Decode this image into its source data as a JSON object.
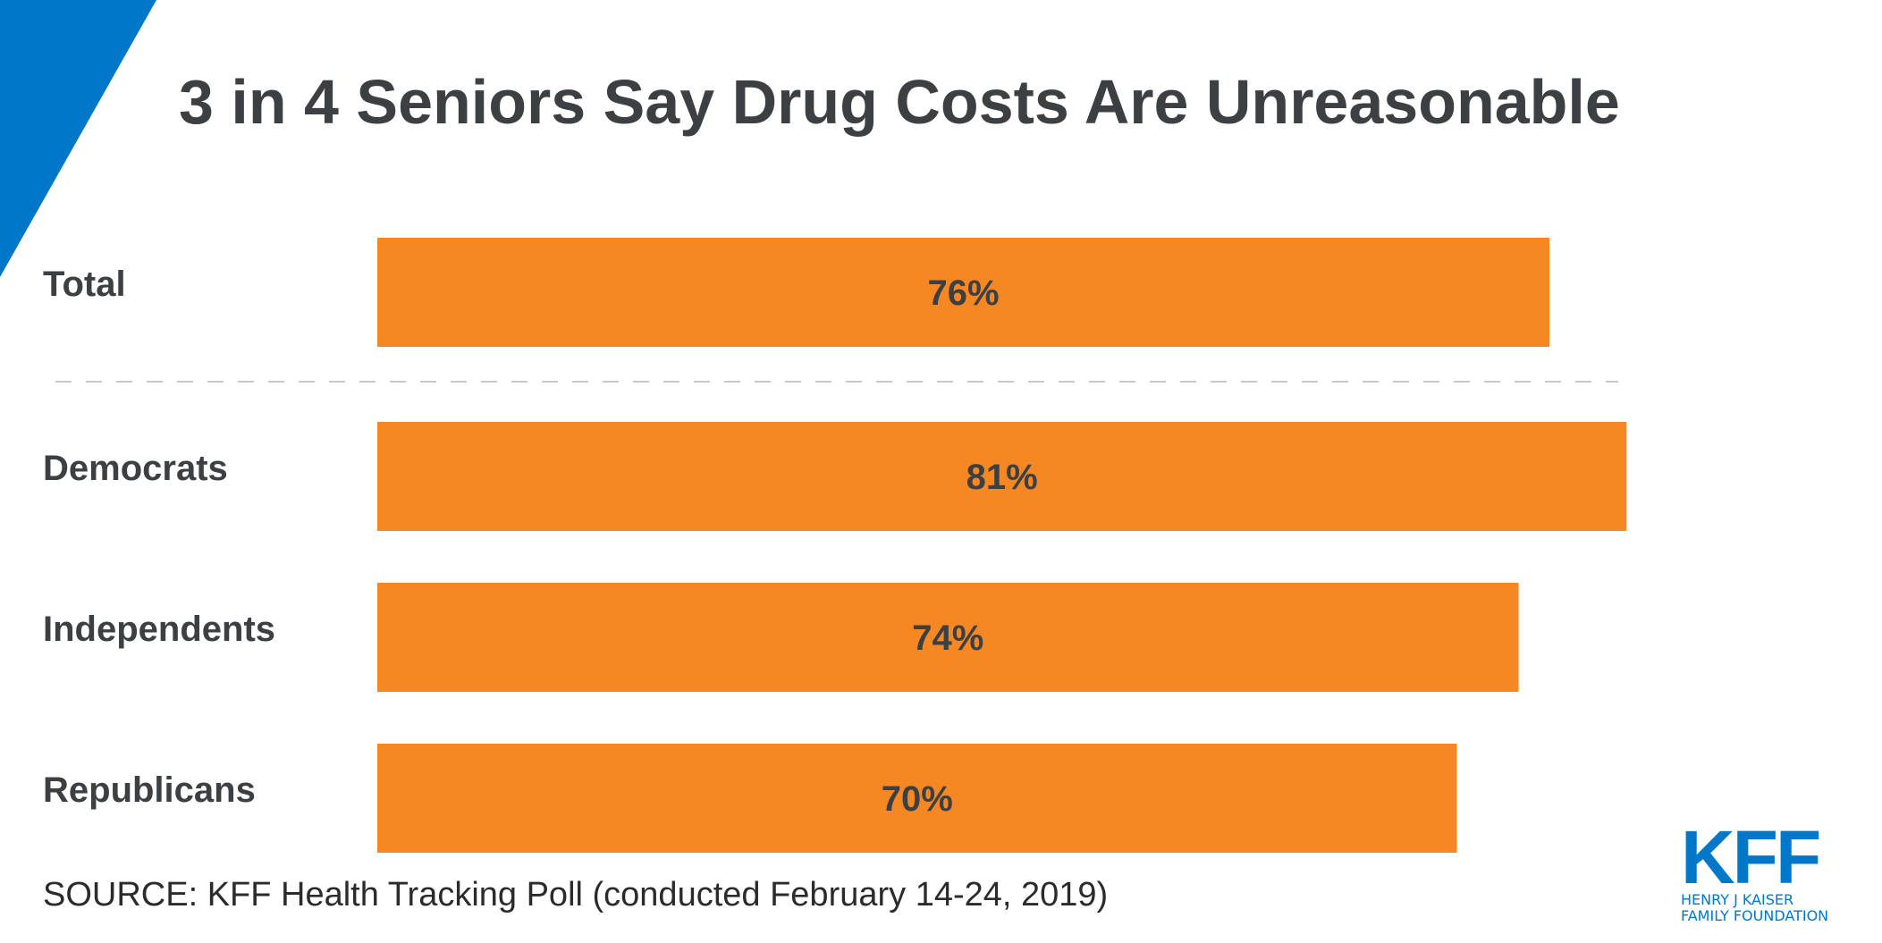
{
  "colors": {
    "bar": "#f58823",
    "text": "#3d4043",
    "brand_blue": "#0077c8",
    "divider": "#c8c8c8"
  },
  "chart_data": {
    "type": "bar",
    "orientation": "horizontal",
    "title": "3 in 4 Seniors Say Drug Costs Are Unreasonable",
    "categories": [
      "Total",
      "Democrats",
      "Independents",
      "Republicans"
    ],
    "values": [
      76,
      81,
      74,
      70
    ],
    "value_labels": [
      "76%",
      "81%",
      "74%",
      "70%"
    ],
    "unit": "%",
    "xlim": [
      0,
      100
    ],
    "grid": false,
    "legend": "none",
    "divider_after_category": "Total",
    "source": "SOURCE: KFF Health Tracking Poll (conducted February 14-24, 2019)"
  },
  "logo": {
    "mark": "KFF",
    "line1": "HENRY J KAISER",
    "line2": "FAMILY FOUNDATION"
  }
}
